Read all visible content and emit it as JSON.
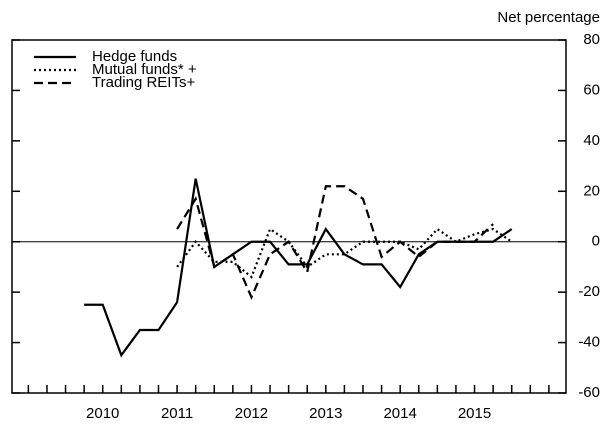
{
  "chart_data": {
    "type": "line",
    "y_axis_label": "Net percentage",
    "x": [
      2010.25,
      2010.5,
      2010.75,
      2011.0,
      2011.25,
      2011.5,
      2011.75,
      2012.0,
      2012.25,
      2012.5,
      2012.75,
      2013.0,
      2013.25,
      2013.5,
      2013.75,
      2014.0,
      2014.25,
      2014.5,
      2014.75,
      2015.0,
      2015.25,
      2015.5,
      2015.75,
      2016.0
    ],
    "series": [
      {
        "name": "Hedge funds",
        "color": "#000000",
        "dash": "solid",
        "values": [
          -25,
          -25,
          -45,
          -35,
          -35,
          -24,
          25,
          -10,
          -5,
          0,
          0,
          -9,
          -9,
          5,
          -5,
          -9,
          -9,
          -18,
          -5,
          0,
          0,
          0,
          0,
          5
        ]
      },
      {
        "name": "Mutual funds* +",
        "color": "#000000",
        "dash": "dotted",
        "values": [
          null,
          null,
          null,
          null,
          null,
          -10,
          0,
          -8,
          -8,
          -14,
          5,
          0,
          -10,
          -5,
          -5,
          0,
          0,
          0,
          -3,
          5,
          0,
          3,
          5,
          0
        ]
      },
      {
        "name": "Trading REITs+",
        "color": "#000000",
        "dash": "dashed",
        "values": [
          null,
          null,
          null,
          null,
          null,
          5,
          17,
          -10,
          -5,
          -22,
          -5,
          0,
          -12,
          22,
          22,
          17,
          -6,
          0,
          -6,
          0,
          0,
          0,
          7,
          null
        ]
      }
    ],
    "xlim": [
      2009.28,
      2016.73
    ],
    "xticks": [
      {
        "value": 2010.5,
        "label": "2010"
      },
      {
        "value": 2011.5,
        "label": "2011"
      },
      {
        "value": 2012.5,
        "label": "2012"
      },
      {
        "value": 2013.5,
        "label": "2013"
      },
      {
        "value": 2014.5,
        "label": "2014"
      },
      {
        "value": 2015.5,
        "label": "2015"
      }
    ],
    "ylim": [
      -60,
      80
    ],
    "yticks": [
      -60,
      -40,
      -20,
      0,
      20,
      40,
      60,
      80
    ],
    "legend": "upper left"
  }
}
